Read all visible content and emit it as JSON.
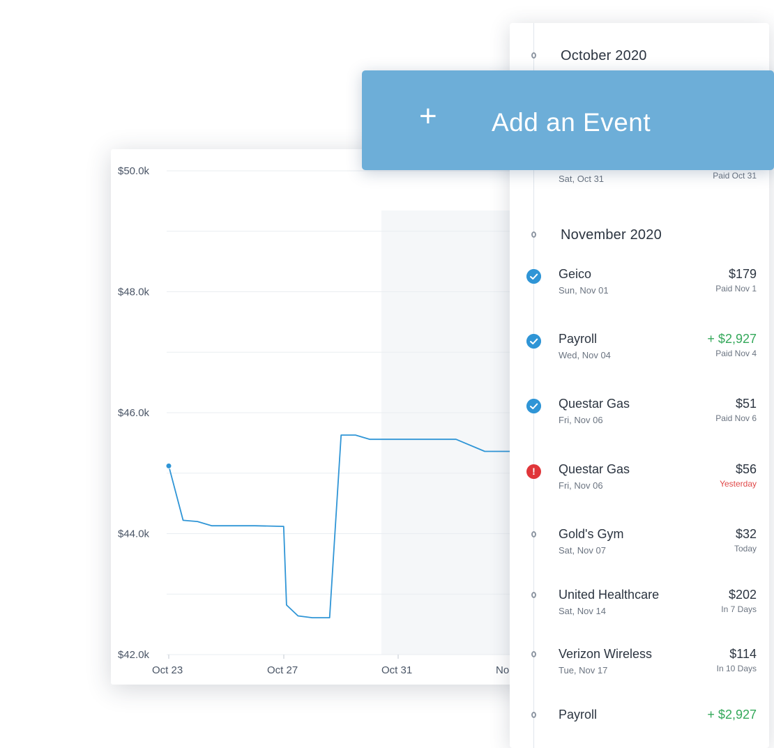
{
  "add_event": {
    "icon": "plus-icon",
    "plus_glyph": "+",
    "label": "Add an Event"
  },
  "chart_data": {
    "type": "line",
    "y_ticks": [
      "$50.0k",
      "$48.0k",
      "$46.0k",
      "$44.0k",
      "$42.0k"
    ],
    "x_ticks": [
      "Oct 23",
      "Oct 27",
      "Oct 31",
      "No"
    ],
    "ylim": [
      42000,
      50000
    ],
    "xlim_days": [
      "Oct 23",
      "Nov 04"
    ],
    "grid": true,
    "shaded_region_start": "Oct 30",
    "line_color": "#2f95d6",
    "series": [
      {
        "x": [
          "Oct 23",
          "Oct 23.5",
          "Oct 24",
          "Oct 24.5",
          "Oct 25",
          "Oct 26",
          "Oct 27",
          "Oct 27.1",
          "Oct 27.5",
          "Oct 28",
          "Oct 28.6",
          "Oct 29",
          "Oct 29.5",
          "Oct 30",
          "Oct 31",
          "Nov 01",
          "Nov 02",
          "Nov 03",
          "Nov 04"
        ],
        "y": [
          45120,
          44220,
          44200,
          44130,
          44130,
          44130,
          44120,
          42820,
          42640,
          42610,
          42610,
          45630,
          45630,
          45560,
          45560,
          45560,
          45560,
          45360,
          45360
        ]
      }
    ]
  },
  "timeline": {
    "months": [
      {
        "label": "October 2020"
      },
      {
        "label": "November 2020"
      }
    ],
    "october_last": {
      "date": "Sat, Oct 31",
      "status": "Paid Oct 31"
    },
    "events": [
      {
        "name": "Geico",
        "date": "Sun, Nov 01",
        "amount": "$179",
        "status": "Paid Nov 1",
        "state": "paid"
      },
      {
        "name": "Payroll",
        "date": "Wed, Nov 04",
        "amount": "+ $2,927",
        "status": "Paid Nov 4",
        "state": "paid",
        "income": true
      },
      {
        "name": "Questar Gas",
        "date": "Fri, Nov 06",
        "amount": "$51",
        "status": "Paid Nov 6",
        "state": "paid"
      },
      {
        "name": "Questar Gas",
        "date": "Fri, Nov 06",
        "amount": "$56",
        "status": "Yesterday",
        "state": "overdue"
      },
      {
        "name": "Gold's Gym",
        "date": "Sat, Nov 07",
        "amount": "$32",
        "status": "Today",
        "state": "upcoming"
      },
      {
        "name": "United Healthcare",
        "date": "Sat, Nov 14",
        "amount": "$202",
        "status": "In 7 Days",
        "state": "upcoming"
      },
      {
        "name": "Verizon Wireless",
        "date": "Tue, Nov 17",
        "amount": "$114",
        "status": "In 10 Days",
        "state": "upcoming"
      },
      {
        "name": "Payroll",
        "date": "",
        "amount": "+ $2,927",
        "status": "",
        "state": "upcoming",
        "income": true
      }
    ],
    "alert_glyph": "!",
    "colors": {
      "paid": "#2f95d6",
      "overdue": "#e0363a",
      "income": "#34a85a",
      "accent": "#6daed8"
    }
  }
}
